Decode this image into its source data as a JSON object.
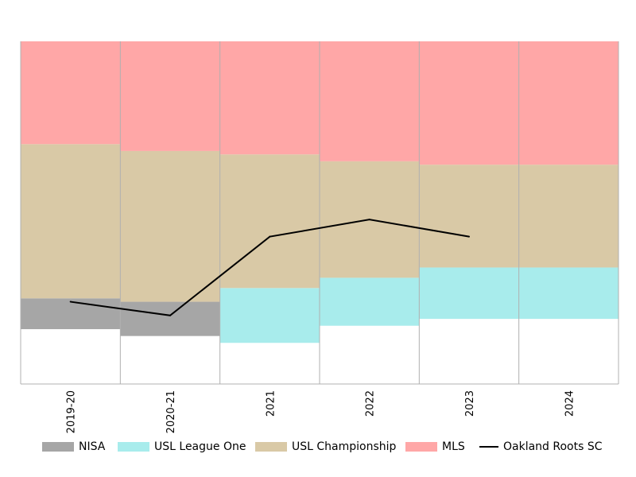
{
  "chart_data": {
    "type": "area",
    "title": "",
    "xlabel": "",
    "ylabel": "",
    "categories": [
      "2019-20",
      "2020-21",
      "2021",
      "2022",
      "2023",
      "2024"
    ],
    "ylim": [
      0,
      100
    ],
    "grid": "vertical",
    "legend_position": "bottom",
    "stacked_bands": [
      {
        "name": "NISA",
        "color": "#a6a6a6",
        "bottom": [
          16,
          14,
          null,
          null,
          null,
          null
        ],
        "top": [
          25,
          24,
          null,
          null,
          null,
          null
        ]
      },
      {
        "name": "USL League One",
        "color": "#a8ecec",
        "bottom": [
          null,
          null,
          12,
          17,
          19,
          19
        ],
        "top": [
          null,
          null,
          28,
          31,
          34,
          34
        ]
      },
      {
        "name": "USL Championship",
        "color": "#d9c9a6",
        "bottom": [
          25,
          24,
          28,
          31,
          34,
          34
        ],
        "top": [
          70,
          68,
          67,
          65,
          64,
          64
        ]
      },
      {
        "name": "MLS",
        "color": "#ffa7a7",
        "bottom": [
          70,
          68,
          67,
          65,
          64,
          64
        ],
        "top": [
          100,
          100,
          100,
          100,
          100,
          100
        ]
      }
    ],
    "series": [
      {
        "name": "Oakland Roots SC",
        "color": "#000000",
        "values": [
          24,
          20,
          43,
          48,
          43,
          null
        ]
      }
    ]
  },
  "legend": [
    {
      "label": "NISA",
      "kind": "swatch",
      "color": "#a6a6a6"
    },
    {
      "label": "USL League One",
      "kind": "swatch",
      "color": "#a8ecec"
    },
    {
      "label": "USL Championship",
      "kind": "swatch",
      "color": "#d9c9a6"
    },
    {
      "label": "MLS",
      "kind": "swatch",
      "color": "#ffa7a7"
    },
    {
      "label": "Oakland Roots SC",
      "kind": "line",
      "color": "#000000"
    }
  ]
}
